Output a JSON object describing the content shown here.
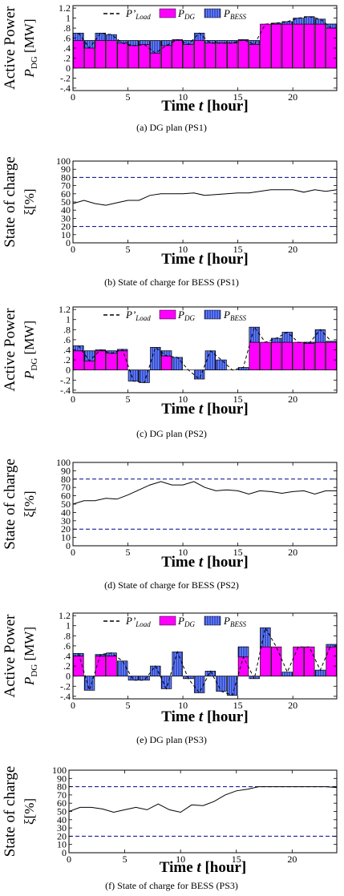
{
  "chart_data": [
    {
      "id": "a",
      "type": "bar",
      "caption": "(a)  DG plan (PS1)",
      "ylabel_line1": "Active Power",
      "ylabel_sym": "P",
      "ylabel_sub": "DG",
      "ylabel_unit": " [MW]",
      "xlabel_main": "Time ",
      "xlabel_var": "t",
      "xlabel_unit": " [hour]",
      "legend": [
        "P'Load",
        "PDG",
        "PBESS"
      ],
      "xlim": [
        0,
        24
      ],
      "ylim": [
        -0.45,
        1.25
      ],
      "xticks": [
        0,
        5,
        10,
        15,
        20
      ],
      "yticks": [
        -0.4,
        -0.2,
        0,
        0.2,
        0.4,
        0.6,
        0.8,
        1,
        1.2
      ],
      "series": [
        {
          "name": "PDG",
          "values": [
            0.55,
            0.55,
            0.55,
            0.55,
            0.55,
            0.55,
            0.55,
            0.55,
            0.55,
            0.55,
            0.55,
            0.55,
            0.55,
            0.55,
            0.55,
            0.55,
            0.55,
            0.88,
            0.88,
            0.88,
            0.88,
            0.88,
            0.88,
            0.88
          ]
        },
        {
          "name": "PBESS",
          "values": [
            0.15,
            -0.15,
            0.15,
            0.12,
            -0.05,
            -0.1,
            -0.08,
            -0.25,
            -0.1,
            0.02,
            -0.08,
            0.15,
            -0.05,
            -0.05,
            -0.05,
            0.02,
            -0.08,
            0,
            0.02,
            0.05,
            0.12,
            0.15,
            0.1,
            -0.08
          ]
        },
        {
          "name": "P'Load",
          "values": [
            0.7,
            0.4,
            0.7,
            0.67,
            0.5,
            0.45,
            0.47,
            0.3,
            0.45,
            0.57,
            0.47,
            0.7,
            0.5,
            0.5,
            0.5,
            0.57,
            0.47,
            0.88,
            0.9,
            0.93,
            1.0,
            1.03,
            0.98,
            0.8
          ]
        }
      ]
    },
    {
      "id": "b",
      "type": "line",
      "caption": "(b)  State of charge for BESS (PS1)",
      "ylabel_line1": "State of charge",
      "ylabel_sym": "ξ",
      "ylabel_unit": "[%]",
      "xlabel_main": "Time ",
      "xlabel_var": "t",
      "xlabel_unit": " [hour]",
      "xlim": [
        0,
        24
      ],
      "ylim": [
        0,
        100
      ],
      "xticks": [
        0,
        5,
        10,
        15,
        20
      ],
      "yticks": [
        0,
        10,
        20,
        30,
        40,
        50,
        60,
        70,
        80,
        90,
        100
      ],
      "limits": [
        20,
        80
      ],
      "x": [
        0,
        1,
        2,
        3,
        4,
        5,
        6,
        7,
        8,
        9,
        10,
        11,
        12,
        13,
        14,
        15,
        16,
        17,
        18,
        19,
        20,
        21,
        22,
        23,
        24
      ],
      "values": [
        48,
        52,
        48,
        46,
        49,
        52,
        52,
        58,
        60,
        60,
        60,
        61,
        58,
        59,
        60,
        61,
        61,
        63,
        65,
        65,
        65,
        62,
        65,
        63,
        65
      ]
    },
    {
      "id": "c",
      "type": "bar",
      "caption": "(c)  DG plan (PS2)",
      "ylabel_line1": "Active Power",
      "ylabel_sym": "P",
      "ylabel_sub": "DG",
      "ylabel_unit": " [MW]",
      "xlabel_main": "Time ",
      "xlabel_var": "t",
      "xlabel_unit": " [hour]",
      "legend": [
        "P'Load",
        "PDG",
        "PBESS"
      ],
      "xlim": [
        0,
        24
      ],
      "ylim": [
        -0.45,
        1.25
      ],
      "xticks": [
        0,
        5,
        10,
        15,
        20
      ],
      "yticks": [
        -0.4,
        -0.2,
        0,
        0.2,
        0.4,
        0.6,
        0.8,
        1,
        1.2
      ],
      "series": [
        {
          "name": "PDG",
          "values": [
            0.38,
            0.38,
            0.38,
            0.38,
            0.38,
            0,
            0,
            0,
            0.38,
            0,
            0,
            0,
            0,
            0,
            0,
            0,
            0.55,
            0.55,
            0.55,
            0.55,
            0.55,
            0.55,
            0.55,
            0.55
          ]
        },
        {
          "name": "PBESS",
          "values": [
            0.1,
            -0.2,
            0.02,
            -0.05,
            0.03,
            -0.22,
            -0.25,
            0.45,
            -0.1,
            0.25,
            0,
            -0.18,
            0.38,
            0.2,
            0,
            0.05,
            0.3,
            0,
            0.08,
            0.2,
            0,
            -0.02,
            0.25,
            0.02
          ]
        },
        {
          "name": "P'Load",
          "values": [
            0.48,
            0.18,
            0.4,
            0.33,
            0.41,
            -0.22,
            -0.25,
            0.45,
            0.28,
            0.25,
            0,
            -0.18,
            0.38,
            0.2,
            0,
            0.05,
            0.85,
            0.55,
            0.63,
            0.75,
            0.55,
            0.53,
            0.8,
            0.57
          ]
        }
      ]
    },
    {
      "id": "d",
      "type": "line",
      "caption": "(d)  State of charge for BESS (PS2)",
      "ylabel_line1": "State of charge",
      "ylabel_sym": "ξ",
      "ylabel_unit": "[%]",
      "xlabel_main": "Time ",
      "xlabel_var": "t",
      "xlabel_unit": " [hour]",
      "xlim": [
        0,
        24
      ],
      "ylim": [
        0,
        100
      ],
      "xticks": [
        0,
        5,
        10,
        15,
        20
      ],
      "yticks": [
        0,
        10,
        20,
        30,
        40,
        50,
        60,
        70,
        80,
        90,
        100
      ],
      "limits": [
        20,
        80
      ],
      "x": [
        0,
        1,
        2,
        3,
        4,
        5,
        6,
        7,
        8,
        9,
        10,
        11,
        12,
        13,
        14,
        15,
        16,
        17,
        18,
        19,
        20,
        21,
        22,
        23,
        24
      ],
      "values": [
        50,
        54,
        54,
        57,
        56,
        61,
        67,
        73,
        77,
        73,
        73,
        77,
        70,
        66,
        67,
        66,
        62,
        66,
        65,
        63,
        65,
        66,
        62,
        66,
        66
      ]
    },
    {
      "id": "e",
      "type": "bar",
      "caption": "(e)  DG plan (PS3)",
      "ylabel_line1": "Active Power",
      "ylabel_sym": "P",
      "ylabel_sub": "DG",
      "ylabel_unit": " [MW]",
      "xlabel_main": "Time ",
      "xlabel_var": "t",
      "xlabel_unit": " [hour]",
      "legend": [
        "P'Load",
        "PDG",
        "PBESS"
      ],
      "xlim": [
        0,
        24
      ],
      "ylim": [
        -0.45,
        1.25
      ],
      "xticks": [
        0,
        5,
        10,
        15,
        20
      ],
      "yticks": [
        -0.4,
        -0.2,
        0,
        0.2,
        0.4,
        0.6,
        0.8,
        1,
        1.2
      ],
      "series": [
        {
          "name": "PDG",
          "values": [
            0.4,
            0,
            0.4,
            0.4,
            0,
            0,
            0,
            0,
            0,
            0,
            0,
            0,
            0,
            0,
            0,
            0.58,
            0,
            0.58,
            0.58,
            0,
            0.58,
            0.58,
            0,
            0.58
          ]
        },
        {
          "name": "PBESS",
          "values": [
            0.05,
            -0.28,
            0.03,
            0.06,
            0.3,
            -0.08,
            -0.08,
            0.2,
            -0.25,
            0.48,
            -0.05,
            -0.33,
            0.1,
            -0.3,
            -0.38,
            -0.2,
            -0.05,
            0.38,
            0,
            0.08,
            0,
            0,
            0.12,
            0.05
          ]
        },
        {
          "name": "P'Load",
          "values": [
            0.45,
            -0.28,
            0.43,
            0.46,
            0.3,
            -0.08,
            -0.08,
            0.2,
            -0.25,
            0.48,
            -0.05,
            -0.33,
            0.1,
            -0.3,
            -0.38,
            0.38,
            -0.05,
            0.96,
            0.58,
            0.08,
            0.58,
            0.58,
            0.12,
            0.63
          ]
        }
      ]
    },
    {
      "id": "f",
      "type": "line",
      "caption": "(f)  State of charge for BESS (PS3)",
      "ylabel_line1": "State of charge",
      "ylabel_sym": "ξ",
      "ylabel_unit": "[%]",
      "xlabel_main": "Time ",
      "xlabel_var": "t",
      "xlabel_unit": " [hour]",
      "xlim": [
        0,
        24
      ],
      "ylim": [
        0,
        100
      ],
      "xticks": [
        0,
        5,
        10,
        15,
        20
      ],
      "yticks": [
        0,
        10,
        20,
        30,
        40,
        50,
        60,
        70,
        80,
        90,
        100
      ],
      "limits": [
        20,
        80
      ],
      "x": [
        0,
        1,
        2,
        3,
        4,
        5,
        6,
        7,
        8,
        9,
        10,
        11,
        12,
        13,
        14,
        15,
        16,
        17,
        18,
        19,
        20,
        21,
        22,
        23,
        24
      ],
      "values": [
        50,
        55,
        55,
        53,
        49,
        52,
        55,
        52,
        59,
        52,
        49,
        58,
        57,
        62,
        70,
        75,
        77,
        80,
        80,
        80,
        80,
        80,
        80,
        80,
        79
      ]
    }
  ],
  "colors": {
    "dg": "#ff00ff",
    "bess": "#6688ff",
    "bess_hatch": "#000080",
    "soc_line": "#000000",
    "limit_line": "#00008b",
    "load_line": "#000000"
  }
}
